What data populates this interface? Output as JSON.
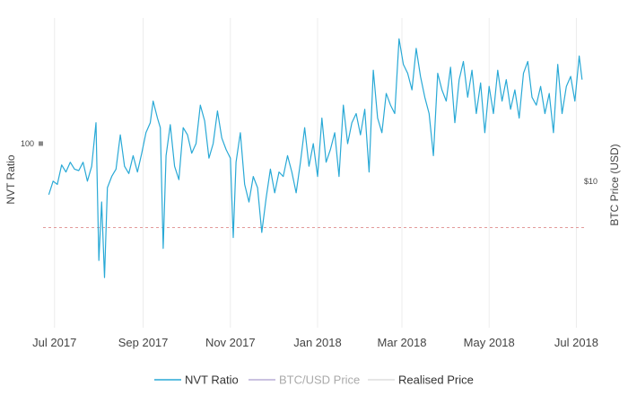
{
  "chart_data": {
    "type": "line",
    "title": "",
    "x_range": [
      "2017-06-23",
      "2018-07-07"
    ],
    "x_ticks": [
      {
        "date": "2017-07-01",
        "label": "Jul 2017"
      },
      {
        "date": "2017-09-01",
        "label": "Sep 2017"
      },
      {
        "date": "2017-11-01",
        "label": "Nov 2017"
      },
      {
        "date": "2018-01-01",
        "label": "Jan 2018"
      },
      {
        "date": "2018-03-01",
        "label": "Mar 2018"
      },
      {
        "date": "2018-05-01",
        "label": "May 2018"
      },
      {
        "date": "2018-07-01",
        "label": "Jul 2018"
      }
    ],
    "y_left": {
      "label": "NVT Ratio",
      "scale": "log",
      "range": [
        20,
        300
      ],
      "ticks": [
        {
          "value": 100,
          "label": "100"
        }
      ]
    },
    "y_right": {
      "label": "BTC Price (USD)",
      "scale": "log",
      "ticks": [
        {
          "label": "$10"
        }
      ]
    },
    "realised_price_nvt": 48,
    "grid": true,
    "legend_position": "bottom",
    "series": [
      {
        "name": "NVT Ratio",
        "color": "#29a9d6",
        "points": [
          [
            "2017-06-27",
            64
          ],
          [
            "2017-06-30",
            72
          ],
          [
            "2017-07-03",
            70
          ],
          [
            "2017-07-06",
            83
          ],
          [
            "2017-07-09",
            78
          ],
          [
            "2017-07-12",
            85
          ],
          [
            "2017-07-15",
            80
          ],
          [
            "2017-07-18",
            79
          ],
          [
            "2017-07-21",
            85
          ],
          [
            "2017-07-24",
            72
          ],
          [
            "2017-07-27",
            82
          ],
          [
            "2017-07-30",
            120
          ],
          [
            "2017-08-01",
            36
          ],
          [
            "2017-08-03",
            60
          ],
          [
            "2017-08-05",
            31
          ],
          [
            "2017-08-07",
            68
          ],
          [
            "2017-08-10",
            75
          ],
          [
            "2017-08-13",
            80
          ],
          [
            "2017-08-16",
            108
          ],
          [
            "2017-08-19",
            82
          ],
          [
            "2017-08-22",
            77
          ],
          [
            "2017-08-25",
            90
          ],
          [
            "2017-08-28",
            78
          ],
          [
            "2017-08-31",
            92
          ],
          [
            "2017-09-03",
            110
          ],
          [
            "2017-09-06",
            120
          ],
          [
            "2017-09-08",
            145
          ],
          [
            "2017-09-11",
            125
          ],
          [
            "2017-09-13",
            115
          ],
          [
            "2017-09-15",
            40
          ],
          [
            "2017-09-17",
            90
          ],
          [
            "2017-09-20",
            118
          ],
          [
            "2017-09-23",
            82
          ],
          [
            "2017-09-26",
            73
          ],
          [
            "2017-09-29",
            115
          ],
          [
            "2017-10-02",
            108
          ],
          [
            "2017-10-05",
            92
          ],
          [
            "2017-10-08",
            100
          ],
          [
            "2017-10-11",
            140
          ],
          [
            "2017-10-14",
            122
          ],
          [
            "2017-10-17",
            88
          ],
          [
            "2017-10-20",
            100
          ],
          [
            "2017-10-23",
            133
          ],
          [
            "2017-10-26",
            105
          ],
          [
            "2017-10-29",
            95
          ],
          [
            "2017-11-01",
            88
          ],
          [
            "2017-11-03",
            44
          ],
          [
            "2017-11-05",
            85
          ],
          [
            "2017-11-08",
            110
          ],
          [
            "2017-11-11",
            70
          ],
          [
            "2017-11-14",
            60
          ],
          [
            "2017-11-17",
            75
          ],
          [
            "2017-11-20",
            68
          ],
          [
            "2017-11-23",
            46
          ],
          [
            "2017-11-26",
            62
          ],
          [
            "2017-11-29",
            80
          ],
          [
            "2017-12-02",
            65
          ],
          [
            "2017-12-05",
            78
          ],
          [
            "2017-12-08",
            75
          ],
          [
            "2017-12-11",
            90
          ],
          [
            "2017-12-14",
            78
          ],
          [
            "2017-12-17",
            65
          ],
          [
            "2017-12-20",
            85
          ],
          [
            "2017-12-23",
            115
          ],
          [
            "2017-12-26",
            82
          ],
          [
            "2017-12-29",
            100
          ],
          [
            "2018-01-01",
            75
          ],
          [
            "2018-01-04",
            125
          ],
          [
            "2018-01-07",
            85
          ],
          [
            "2018-01-10",
            95
          ],
          [
            "2018-01-13",
            110
          ],
          [
            "2018-01-16",
            75
          ],
          [
            "2018-01-19",
            140
          ],
          [
            "2018-01-22",
            100
          ],
          [
            "2018-01-25",
            120
          ],
          [
            "2018-01-28",
            130
          ],
          [
            "2018-01-31",
            108
          ],
          [
            "2018-02-03",
            135
          ],
          [
            "2018-02-06",
            78
          ],
          [
            "2018-02-09",
            190
          ],
          [
            "2018-02-12",
            125
          ],
          [
            "2018-02-15",
            110
          ],
          [
            "2018-02-18",
            155
          ],
          [
            "2018-02-21",
            140
          ],
          [
            "2018-02-24",
            130
          ],
          [
            "2018-02-27",
            250
          ],
          [
            "2018-03-02",
            200
          ],
          [
            "2018-03-05",
            185
          ],
          [
            "2018-03-08",
            160
          ],
          [
            "2018-03-11",
            230
          ],
          [
            "2018-03-14",
            180
          ],
          [
            "2018-03-17",
            150
          ],
          [
            "2018-03-20",
            130
          ],
          [
            "2018-03-23",
            90
          ],
          [
            "2018-03-26",
            185
          ],
          [
            "2018-03-29",
            160
          ],
          [
            "2018-04-01",
            145
          ],
          [
            "2018-04-04",
            195
          ],
          [
            "2018-04-07",
            120
          ],
          [
            "2018-04-10",
            175
          ],
          [
            "2018-04-13",
            205
          ],
          [
            "2018-04-16",
            150
          ],
          [
            "2018-04-19",
            190
          ],
          [
            "2018-04-22",
            130
          ],
          [
            "2018-04-25",
            170
          ],
          [
            "2018-04-28",
            110
          ],
          [
            "2018-05-01",
            165
          ],
          [
            "2018-05-04",
            130
          ],
          [
            "2018-05-07",
            190
          ],
          [
            "2018-05-10",
            145
          ],
          [
            "2018-05-13",
            175
          ],
          [
            "2018-05-16",
            135
          ],
          [
            "2018-05-19",
            160
          ],
          [
            "2018-05-22",
            125
          ],
          [
            "2018-05-25",
            185
          ],
          [
            "2018-05-28",
            205
          ],
          [
            "2018-05-31",
            150
          ],
          [
            "2018-06-03",
            140
          ],
          [
            "2018-06-06",
            165
          ],
          [
            "2018-06-09",
            130
          ],
          [
            "2018-06-12",
            155
          ],
          [
            "2018-06-15",
            110
          ],
          [
            "2018-06-18",
            200
          ],
          [
            "2018-06-21",
            130
          ],
          [
            "2018-06-24",
            165
          ],
          [
            "2018-06-27",
            180
          ],
          [
            "2018-06-30",
            145
          ],
          [
            "2018-07-03",
            215
          ],
          [
            "2018-07-05",
            175
          ]
        ]
      },
      {
        "name": "BTC/USD Price",
        "color": "#b8aed6",
        "points": []
      },
      {
        "name": "Realised Price",
        "color": "#e8a0a0",
        "points": []
      }
    ]
  }
}
